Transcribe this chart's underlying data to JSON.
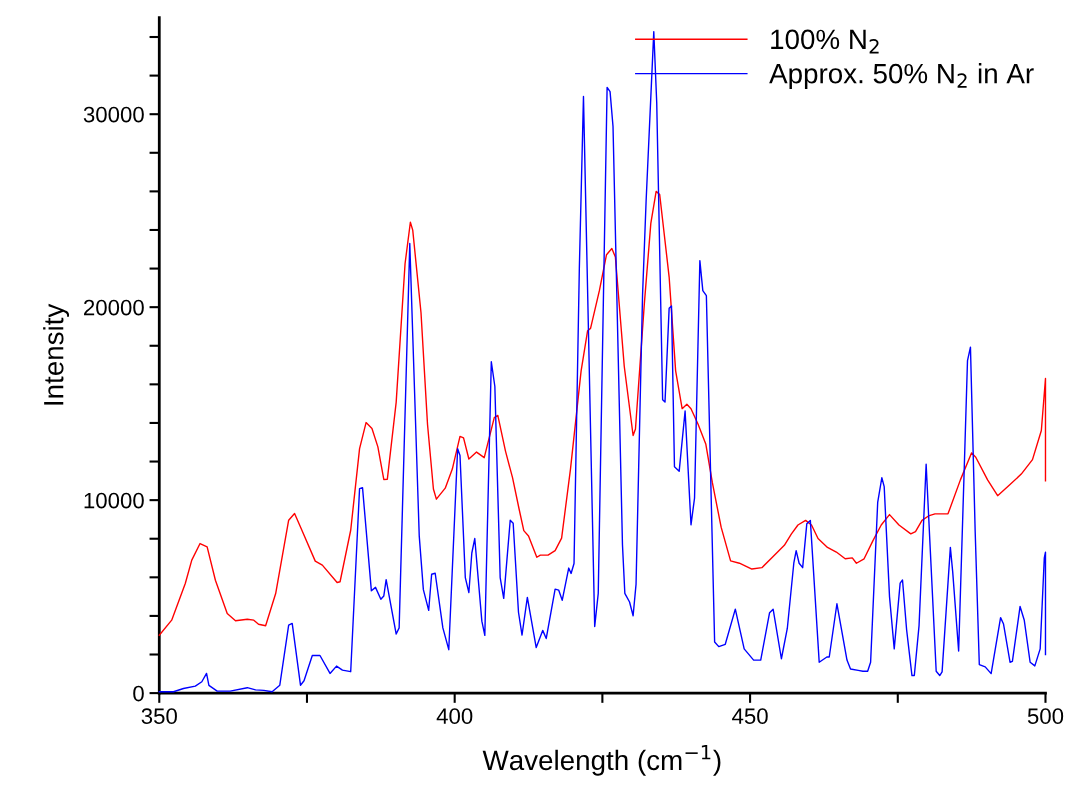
{
  "chart_data": {
    "type": "line",
    "xlabel": "Wavelength (cm$^{−1}$)",
    "ylabel": "Intensity",
    "xlim": [
      350,
      500
    ],
    "xticks": [
      350,
      {
        "value": 375,
        "label": null
      },
      400,
      {
        "value": 425,
        "label": null
      },
      450,
      {
        "value": 475,
        "label": null
      },
      500
    ],
    "ylim": [
      0,
      35000
    ],
    "yticks": [
      0,
      {
        "value": 2000,
        "label": null
      },
      {
        "value": 4000,
        "label": null
      },
      {
        "value": 6000,
        "label": null
      },
      {
        "value": 8000,
        "label": null
      },
      10000,
      {
        "value": 12000,
        "label": null
      },
      {
        "value": 14000,
        "label": null
      },
      {
        "value": 16000,
        "label": null
      },
      {
        "value": 18000,
        "label": null
      },
      20000,
      {
        "value": 22000,
        "label": null
      },
      {
        "value": 24000,
        "label": null
      },
      {
        "value": 26000,
        "label": null
      },
      {
        "value": 28000,
        "label": null
      },
      30000,
      {
        "value": 32000,
        "label": null
      },
      {
        "value": 34000,
        "label": null
      }
    ],
    "grid": false,
    "legend": "top right",
    "line_style": "solid",
    "marker": "none",
    "series": [
      {
        "name": "100% N$_{2}$",
        "color": "#ff0000",
        "x": [
          350.0,
          352.1,
          354.4,
          355.5,
          356.9,
          358.1,
          359.5,
          361.5,
          362.9,
          364.9,
          366.0,
          366.8,
          368.0,
          369.7,
          371.9,
          372.9,
          373.9,
          376.4,
          377.6,
          380.1,
          380.6,
          382.4,
          383.9,
          385.0,
          386.0,
          387.0,
          388.0,
          388.6,
          390.1,
          391.6,
          392.5,
          392.9,
          394.3,
          395.4,
          396.4,
          396.9,
          398.4,
          399.6,
          400.9,
          401.5,
          402.4,
          403.7,
          405.0,
          406.7,
          407.3,
          408.6,
          409.8,
          410.9,
          411.7,
          412.5,
          413.9,
          414.5,
          415.8,
          417.0,
          418.1,
          419.6,
          421.4,
          422.5,
          423.0,
          424.5,
          425.7,
          426.6,
          427.2,
          428.7,
          430.2,
          430.6,
          432.1,
          433.2,
          434.1,
          434.7,
          436.3,
          437.4,
          438.5,
          439.3,
          440.0,
          441.2,
          442.5,
          443.6,
          445.1,
          446.7,
          448.2,
          450.3,
          452.0,
          453.9,
          455.8,
          457.0,
          458.1,
          459.4,
          460.4,
          461.5,
          463.1,
          464.6,
          466.1,
          467.3,
          468.0,
          469.3,
          470.8,
          472.2,
          473.6,
          475.2,
          477.2,
          478.0,
          479.1,
          480.2,
          481.3,
          483.5,
          485.6,
          487.5,
          488.2,
          490.2,
          491.9,
          494.0,
          495.9,
          497.8,
          499.3,
          500.0,
          500.0
        ],
        "values": [
          3000,
          3780,
          5680,
          6890,
          7750,
          7580,
          5850,
          4130,
          3750,
          3830,
          3780,
          3570,
          3490,
          5160,
          8960,
          9310,
          8610,
          6840,
          6630,
          5730,
          5770,
          8440,
          12670,
          14020,
          13710,
          12760,
          11070,
          11080,
          15080,
          22250,
          24400,
          23990,
          19710,
          13930,
          10580,
          10050,
          10620,
          11610,
          13300,
          13230,
          12130,
          12490,
          12200,
          14280,
          14390,
          12540,
          11150,
          9540,
          8420,
          8140,
          7040,
          7150,
          7150,
          7380,
          8030,
          11610,
          16700,
          18780,
          18900,
          20870,
          22720,
          23040,
          22600,
          16940,
          13350,
          13690,
          20170,
          24340,
          26000,
          25840,
          21560,
          16700,
          14740,
          14970,
          14740,
          13930,
          12910,
          10930,
          8600,
          6850,
          6730,
          6430,
          6500,
          7080,
          7660,
          8250,
          8710,
          8950,
          8710,
          8010,
          7550,
          7310,
          6960,
          7010,
          6730,
          6960,
          7900,
          8710,
          9250,
          8710,
          8250,
          8370,
          8950,
          9180,
          9290,
          9290,
          11050,
          12450,
          12220,
          11050,
          10230,
          10810,
          11350,
          12100,
          13610,
          16300,
          11000
        ]
      },
      {
        "name": "Approx. 50% N$_{2}$ in Ar",
        "color": "#0000ff",
        "x": [
          350.0,
          352.4,
          354.1,
          356.1,
          357.2,
          358.0,
          358.4,
          359.8,
          362.0,
          364.9,
          366.3,
          367.7,
          369.1,
          370.4,
          371.9,
          372.5,
          373.9,
          374.5,
          375.9,
          377.2,
          378.9,
          380.0,
          381.0,
          382.4,
          383.9,
          384.4,
          385.9,
          386.6,
          387.5,
          388.0,
          388.4,
          390.1,
          390.6,
          392.4,
          394.0,
          394.7,
          395.6,
          396.1,
          396.7,
          398.0,
          399.0,
          400.5,
          400.9,
          401.8,
          402.4,
          402.9,
          403.4,
          404.6,
          405.1,
          406.2,
          406.8,
          407.7,
          408.3,
          409.4,
          409.9,
          410.8,
          411.4,
          412.3,
          413.8,
          414.9,
          415.5,
          417.0,
          417.6,
          418.2,
          419.3,
          419.7,
          420.2,
          421.1,
          421.8,
          422.7,
          423.7,
          424.3,
          425.8,
          426.3,
          426.8,
          428.4,
          428.8,
          429.6,
          430.2,
          430.7,
          431.8,
          432.4,
          433.7,
          434.2,
          435.2,
          435.6,
          436.3,
          436.7,
          437.2,
          438.0,
          439.0,
          440.0,
          440.6,
          441.5,
          442.0,
          442.6,
          444.0,
          444.7,
          445.8,
          447.5,
          449.0,
          450.6,
          451.8,
          453.3,
          453.9,
          455.3,
          456.3,
          457.4,
          457.8,
          458.3,
          458.9,
          459.6,
          460.2,
          461.7,
          463.0,
          463.4,
          464.7,
          466.4,
          467.0,
          468.3,
          469.1,
          469.9,
          470.4,
          471.6,
          472.3,
          472.7,
          473.6,
          474.4,
          475.4,
          475.8,
          476.5,
          477.4,
          477.8,
          478.6,
          479.8,
          480.5,
          481.5,
          482.1,
          482.5,
          483.9,
          484.3,
          485.3,
          486.2,
          486.8,
          487.3,
          488.1,
          488.8,
          489.8,
          490.8,
          492.4,
          492.9,
          494.0,
          494.4,
          495.7,
          496.4,
          497.4,
          498.2,
          499.1,
          499.8,
          500.0,
          500.0
        ],
        "values": [
          70,
          70,
          240,
          360,
          590,
          1020,
          400,
          100,
          100,
          280,
          170,
          140,
          70,
          410,
          3520,
          3610,
          410,
          640,
          1950,
          1950,
          1020,
          1400,
          1190,
          1110,
          10600,
          10650,
          5300,
          5480,
          4860,
          5030,
          5880,
          3060,
          3380,
          23300,
          8150,
          5360,
          4290,
          6160,
          6210,
          3380,
          2250,
          12660,
          12310,
          5980,
          5210,
          7260,
          8010,
          3730,
          2990,
          17170,
          15890,
          5980,
          4910,
          8960,
          8800,
          4190,
          3010,
          4960,
          2360,
          3250,
          2830,
          5390,
          5340,
          4810,
          6480,
          6200,
          6720,
          22020,
          30920,
          17950,
          3450,
          5170,
          31390,
          31170,
          29360,
          7690,
          5170,
          4720,
          4010,
          5650,
          20640,
          25490,
          34280,
          30580,
          15200,
          15080,
          19940,
          20060,
          11730,
          11500,
          14620,
          8720,
          10110,
          22410,
          20860,
          20600,
          2650,
          2410,
          2530,
          4350,
          2290,
          1710,
          1710,
          4170,
          4350,
          1780,
          3350,
          6730,
          7380,
          6730,
          6500,
          8770,
          8950,
          1600,
          1870,
          1870,
          4630,
          1710,
          1250,
          1180,
          1130,
          1130,
          1600,
          9880,
          11160,
          10700,
          5000,
          2290,
          5700,
          5860,
          3270,
          910,
          910,
          3500,
          11860,
          7430,
          1130,
          910,
          1100,
          7550,
          6270,
          2180,
          11160,
          17230,
          17930,
          8370,
          1480,
          1360,
          1010,
          3910,
          3580,
          1600,
          1640,
          4490,
          3790,
          1600,
          1410,
          2290,
          7010,
          7300,
          2000
        ]
      }
    ]
  }
}
